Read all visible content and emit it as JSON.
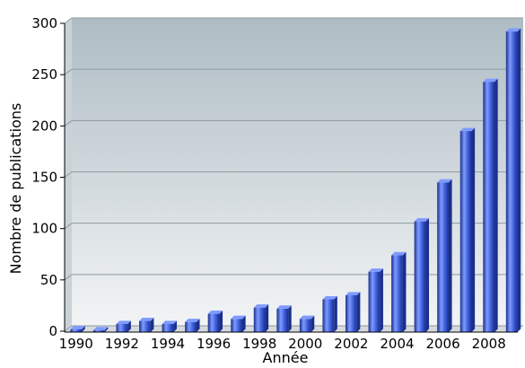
{
  "chart_data": {
    "type": "bar",
    "title": "",
    "xlabel": "Année",
    "ylabel": "Nombre de publications",
    "categories": [
      "1990",
      "1991",
      "1992",
      "1993",
      "1994",
      "1995",
      "1996",
      "1997",
      "1998",
      "1999",
      "2000",
      "2001",
      "2002",
      "2003",
      "2004",
      "2005",
      "2006",
      "2007",
      "2008",
      "2009"
    ],
    "x_tick_labels": [
      "1990",
      "1992",
      "1994",
      "1996",
      "1998",
      "2000",
      "2002",
      "2004",
      "2006",
      "2008"
    ],
    "values": [
      2,
      1,
      7,
      10,
      7,
      9,
      17,
      12,
      23,
      22,
      12,
      31,
      35,
      58,
      74,
      107,
      145,
      195,
      243,
      292
    ],
    "ylim": [
      0,
      300
    ],
    "y_ticks": [
      0,
      50,
      100,
      150,
      200,
      250,
      300
    ],
    "grid": true,
    "legend": "none",
    "colors": {
      "bar": "#3b5bd8",
      "bar_dark": "#1a2f8c",
      "bar_light": "#7f9bff",
      "background_top": "#aebcc4",
      "background_bottom": "#f2f4f5",
      "grid": "#8e9aa2",
      "axis": "#000000"
    }
  }
}
